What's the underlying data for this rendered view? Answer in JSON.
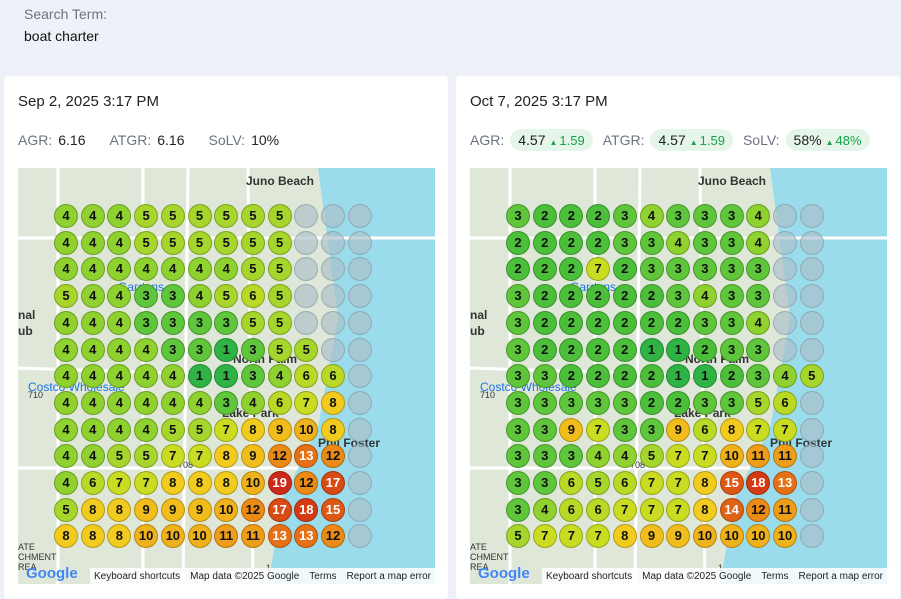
{
  "search": {
    "label": "Search Term:",
    "value": "boat charter"
  },
  "panels": [
    {
      "timestamp": "Sep 2, 2025 3:17 PM",
      "metrics": [
        {
          "label": "AGR:",
          "value": "6.16",
          "delta": null
        },
        {
          "label": "ATGR:",
          "value": "6.16",
          "delta": null
        },
        {
          "label": "SoLV:",
          "value": "10%",
          "delta": null
        }
      ],
      "grid": [
        [
          4,
          4,
          4,
          5,
          5,
          5,
          5,
          5,
          5,
          null,
          null,
          null
        ],
        [
          4,
          4,
          4,
          5,
          5,
          5,
          5,
          5,
          5,
          null,
          null,
          null
        ],
        [
          4,
          4,
          4,
          4,
          4,
          4,
          4,
          5,
          5,
          null,
          null,
          null
        ],
        [
          5,
          4,
          4,
          3,
          3,
          4,
          5,
          6,
          5,
          null,
          null,
          null
        ],
        [
          4,
          4,
          4,
          3,
          3,
          3,
          3,
          5,
          5,
          null,
          null,
          null
        ],
        [
          4,
          4,
          4,
          4,
          3,
          3,
          1,
          3,
          5,
          5,
          null,
          null
        ],
        [
          4,
          4,
          4,
          4,
          4,
          1,
          1,
          3,
          4,
          6,
          6,
          null
        ],
        [
          4,
          4,
          4,
          4,
          4,
          4,
          3,
          4,
          6,
          7,
          8,
          null
        ],
        [
          4,
          4,
          4,
          4,
          5,
          5,
          7,
          8,
          9,
          10,
          8,
          null
        ],
        [
          4,
          4,
          5,
          5,
          7,
          7,
          8,
          9,
          12,
          13,
          12,
          null
        ],
        [
          4,
          6,
          7,
          7,
          8,
          8,
          8,
          10,
          19,
          12,
          17,
          null
        ],
        [
          5,
          8,
          8,
          9,
          9,
          9,
          10,
          12,
          17,
          18,
          15,
          null
        ],
        [
          8,
          8,
          8,
          10,
          10,
          10,
          11,
          11,
          13,
          13,
          12,
          null
        ]
      ]
    },
    {
      "timestamp": "Oct 7, 2025 3:17 PM",
      "metrics": [
        {
          "label": "AGR:",
          "value": "4.57",
          "delta": "1.59"
        },
        {
          "label": "ATGR:",
          "value": "4.57",
          "delta": "1.59"
        },
        {
          "label": "SoLV:",
          "value": "58%",
          "delta": "48%"
        }
      ],
      "grid": [
        [
          3,
          2,
          2,
          2,
          3,
          4,
          3,
          3,
          3,
          4,
          null,
          null
        ],
        [
          2,
          2,
          2,
          2,
          3,
          3,
          4,
          3,
          3,
          4,
          null,
          null
        ],
        [
          2,
          2,
          2,
          7,
          2,
          3,
          3,
          3,
          3,
          3,
          null,
          null
        ],
        [
          3,
          2,
          2,
          2,
          2,
          2,
          3,
          4,
          3,
          3,
          null,
          null
        ],
        [
          3,
          2,
          2,
          2,
          2,
          2,
          2,
          3,
          3,
          4,
          null,
          null
        ],
        [
          3,
          2,
          2,
          2,
          2,
          1,
          1,
          2,
          3,
          3,
          null,
          null
        ],
        [
          3,
          3,
          2,
          2,
          2,
          2,
          1,
          1,
          2,
          3,
          4,
          5
        ],
        [
          3,
          3,
          3,
          3,
          3,
          2,
          2,
          3,
          3,
          5,
          6,
          null
        ],
        [
          3,
          3,
          9,
          7,
          3,
          3,
          9,
          6,
          8,
          7,
          7,
          null
        ],
        [
          3,
          3,
          3,
          4,
          4,
          5,
          7,
          7,
          10,
          11,
          11,
          null
        ],
        [
          3,
          3,
          6,
          5,
          6,
          7,
          7,
          8,
          15,
          18,
          13,
          null
        ],
        [
          3,
          4,
          6,
          6,
          7,
          7,
          7,
          8,
          14,
          12,
          11,
          null
        ],
        [
          5,
          7,
          7,
          7,
          8,
          9,
          9,
          10,
          10,
          10,
          10,
          null
        ]
      ]
    }
  ],
  "map": {
    "places": [
      "Juno Beach",
      "North Palm",
      "Lake Park",
      "Phil Foster",
      "Costco Wholesale",
      "Gardens",
      "nal",
      "ub",
      "710",
      "708",
      "1",
      "ATE",
      "CHMENT",
      "REA"
    ],
    "attribution": [
      "Keyboard shortcuts",
      "Map data ©2025 Google",
      "Terms",
      "Report a map error"
    ],
    "logo": "Google"
  },
  "colors": {
    "1": "#2fb344",
    "2": "#4cbf3a",
    "3": "#5fc53a",
    "4": "#8fd12f",
    "5": "#a6d62b",
    "6": "#b9d926",
    "7": "#c9dc22",
    "8": "#f2cb1f",
    "9": "#f0bd1c",
    "10": "#f0b21a",
    "11": "#ee9d18",
    "12": "#ec8a16",
    "13": "#e57016",
    "14": "#e06215",
    "15": "#dd5814",
    "17": "#d94a14",
    "18": "#d33a14",
    "19": "#cc2b1a",
    "water": "#9bdcec"
  }
}
